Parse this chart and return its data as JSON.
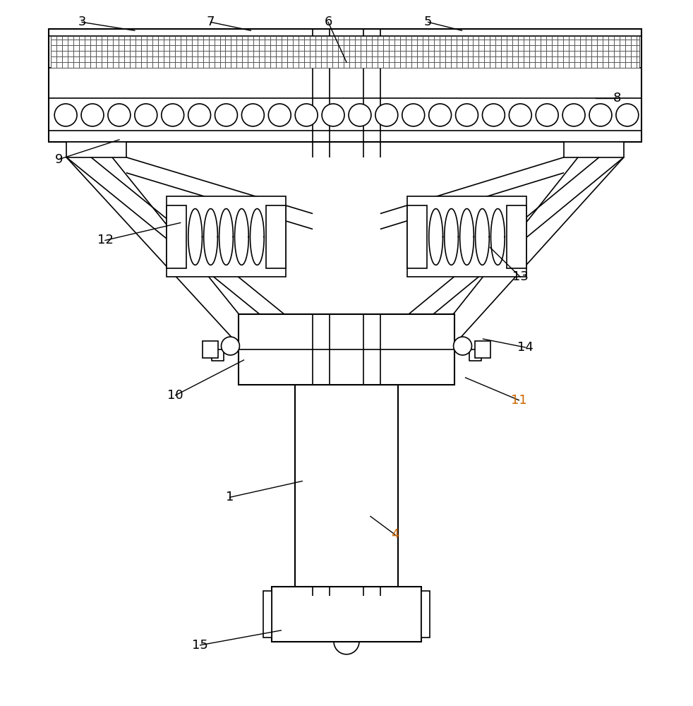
{
  "bg_color": "#ffffff",
  "line_color": "#000000",
  "fig_width": 9.82,
  "fig_height": 10.0,
  "lw": 1.5,
  "lw2": 1.2,
  "lw_label": 1.0,
  "font_size": 13
}
